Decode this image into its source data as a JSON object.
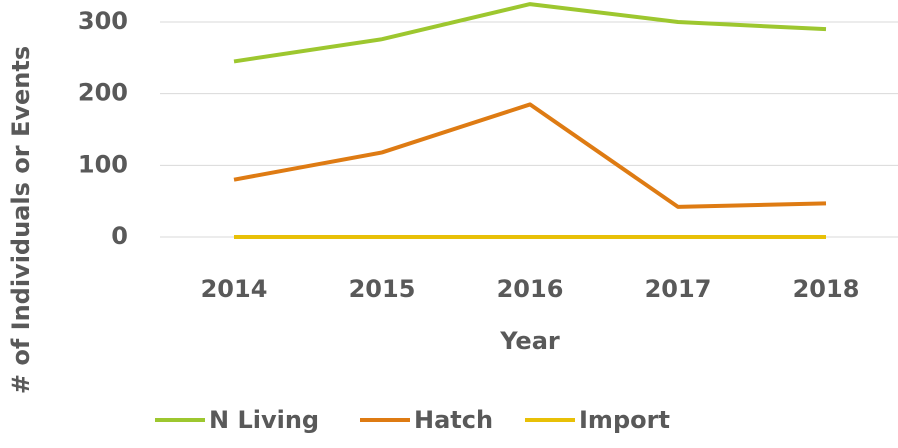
{
  "chart_data": {
    "type": "line",
    "x_label": "Year",
    "y_label": "# of Individuals or Events",
    "categories": [
      "2014",
      "2015",
      "2016",
      "2017",
      "2018"
    ],
    "series": [
      {
        "name": "N Living",
        "color": "#9dc72f",
        "values": [
          245,
          276,
          325,
          300,
          290
        ]
      },
      {
        "name": "Hatch",
        "color": "#de7b13",
        "values": [
          80,
          118,
          185,
          42,
          47
        ]
      },
      {
        "name": "Import",
        "color": "#e8c007",
        "values": [
          0,
          0,
          0,
          0,
          0
        ]
      }
    ],
    "ylim": [
      0,
      330
    ],
    "yticks": [
      0,
      100,
      200,
      300
    ],
    "grid": true,
    "legend": "bottom"
  }
}
